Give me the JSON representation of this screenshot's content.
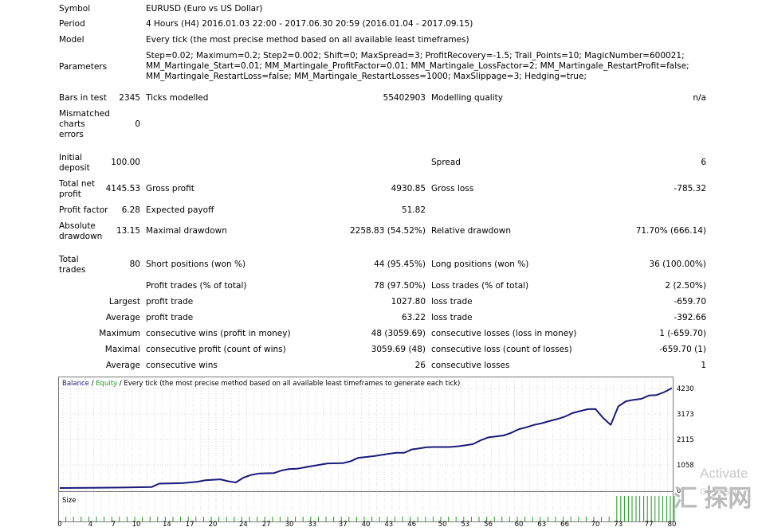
{
  "report": {
    "symbol": {
      "label": "Symbol",
      "value": "EURUSD (Euro vs US Dollar)"
    },
    "period": {
      "label": "Period",
      "value": "4 Hours (H4) 2016.01.03 22:00 - 2017.06.30 20:59 (2016.01.04 - 2017.09.15)"
    },
    "model": {
      "label": "Model",
      "value": "Every tick (the most precise method based on all available least timeframes)"
    },
    "parameters": {
      "label": "Parameters",
      "lines": [
        "Step=0.02; Maximum=0.2; Step2=0.002; Shift=0; MaxSpread=3; ProfitRecovery=-1.5; Trail_Points=10; MagicNumber=600021;",
        "MM_Martingale_Start=0.01; MM_Martingale_ProfitFactor=0.01; MM_Martingale_LossFactor=2; MM_Martingale_RestartProfit=false;",
        "MM_Martingale_RestartLoss=false; MM_Martingale_RestartLosses=1000; MaxSlippage=3; Hedging=true;"
      ]
    },
    "bars_in_test": {
      "label": "Bars in test",
      "value": "2345"
    },
    "ticks_modelled": {
      "label": "Ticks modelled",
      "value": "55402903"
    },
    "modelling_quality": {
      "label": "Modelling quality",
      "value": "n/a"
    },
    "mismatched": {
      "label": [
        "Mismatched",
        "charts",
        "errors"
      ],
      "value": "0"
    },
    "initial_deposit": {
      "label": [
        "Initial",
        "deposit"
      ],
      "value": "100.00"
    },
    "spread": {
      "label": "Spread",
      "value": "6"
    },
    "total_net_profit": {
      "label": [
        "Total net",
        "profit"
      ],
      "value": "4145.53"
    },
    "gross_profit": {
      "label": "Gross profit",
      "value": "4930.85"
    },
    "gross_loss": {
      "label": "Gross loss",
      "value": "-785.32"
    },
    "profit_factor": {
      "label": "Profit factor",
      "value": "6.28"
    },
    "expected_payoff": {
      "label": "Expected payoff",
      "value": "51.82"
    },
    "absolute_drawdown": {
      "label": [
        "Absolute",
        "drawdown"
      ],
      "value": "13.15"
    },
    "maximal_drawdown": {
      "label": "Maximal drawdown",
      "value": "2258.83 (54.52%)"
    },
    "relative_drawdown": {
      "label": "Relative drawdown",
      "value": "71.70% (666.14)"
    },
    "total_trades": {
      "label": [
        "Total",
        "trades"
      ],
      "value": "80"
    },
    "short_positions": {
      "label": "Short positions (won %)",
      "value": "44 (95.45%)"
    },
    "long_positions": {
      "label": "Long positions (won %)",
      "value": "36 (100.00%)"
    },
    "profit_trades": {
      "label": "Profit trades (% of total)",
      "value": "78 (97.50%)"
    },
    "loss_trades": {
      "label": "Loss trades (% of total)",
      "value": "2 (2.50%)"
    },
    "largest": {
      "label": "Largest",
      "profit_label": "profit trade",
      "profit_value": "1027.80",
      "loss_label": "loss trade",
      "loss_value": "-659.70"
    },
    "average": {
      "label": "Average",
      "profit_label": "profit trade",
      "profit_value": "63.22",
      "loss_label": "loss trade",
      "loss_value": "-392.66"
    },
    "maximum": {
      "label": "Maximum",
      "wins_label": "consecutive wins (profit in money)",
      "wins_value": "48 (3059.69)",
      "losses_label": "consecutive losses (loss in money)",
      "losses_value": "1 (-659.70)"
    },
    "maximal": {
      "label": "Maximal",
      "profit_label": "consecutive profit (count of wins)",
      "profit_value": "3059.69 (48)",
      "loss_label": "consecutive loss (count of losses)",
      "loss_value": "-659.70 (1)"
    },
    "average_consec": {
      "label": "Average",
      "wins_label": "consecutive wins",
      "wins_value": "26",
      "losses_label": "consecutive losses",
      "losses_value": "1"
    }
  },
  "chart_data": {
    "type": "line",
    "legend": {
      "balance": "Balance",
      "sep": " / ",
      "equity": "Equity",
      "rest": " / Every tick (the most precise method based on all available least timeframes to generate each tick)"
    },
    "colors": {
      "balance": "#1a1a7a",
      "equity": "#1f9a1f",
      "size": "#1f9a1f",
      "grid": "#d9d9d9"
    },
    "ylim": [
      0,
      4230
    ],
    "y_ticks": [
      "4230",
      "3173",
      "2115",
      "1058",
      "0"
    ],
    "x_ticks": [
      "0",
      "4",
      "7",
      "10",
      "14",
      "17",
      "20",
      "24",
      "27",
      "30",
      "33",
      "37",
      "40",
      "43",
      "46",
      "50",
      "53",
      "56",
      "60",
      "63",
      "66",
      "70",
      "73",
      "77",
      "80"
    ],
    "x_range": [
      0,
      80
    ],
    "balance": [
      [
        0,
        100
      ],
      [
        4,
        110
      ],
      [
        8,
        120
      ],
      [
        12,
        140
      ],
      [
        13,
        280
      ],
      [
        16,
        300
      ],
      [
        18,
        360
      ],
      [
        19,
        420
      ],
      [
        21,
        460
      ],
      [
        22,
        380
      ],
      [
        23,
        330
      ],
      [
        24,
        530
      ],
      [
        25,
        640
      ],
      [
        26,
        700
      ],
      [
        28,
        720
      ],
      [
        29,
        830
      ],
      [
        30,
        890
      ],
      [
        31,
        900
      ],
      [
        33,
        1010
      ],
      [
        35,
        1120
      ],
      [
        37,
        1130
      ],
      [
        38,
        1210
      ],
      [
        39,
        1350
      ],
      [
        41,
        1420
      ],
      [
        43,
        1520
      ],
      [
        44,
        1560
      ],
      [
        45,
        1560
      ],
      [
        46,
        1700
      ],
      [
        48,
        1790
      ],
      [
        49,
        1800
      ],
      [
        51,
        1800
      ],
      [
        52,
        1830
      ],
      [
        53,
        1870
      ],
      [
        54,
        1920
      ],
      [
        55,
        2080
      ],
      [
        56,
        2200
      ],
      [
        57,
        2240
      ],
      [
        58,
        2280
      ],
      [
        59,
        2390
      ],
      [
        60,
        2540
      ],
      [
        61,
        2620
      ],
      [
        62,
        2720
      ],
      [
        63,
        2790
      ],
      [
        64,
        2880
      ],
      [
        65,
        2960
      ],
      [
        66,
        3060
      ],
      [
        67,
        3210
      ],
      [
        68,
        3290
      ],
      [
        69,
        3370
      ],
      [
        70,
        3380
      ],
      [
        71,
        3010
      ],
      [
        72,
        2720
      ],
      [
        73,
        3490
      ],
      [
        74,
        3700
      ],
      [
        75,
        3760
      ],
      [
        76,
        3800
      ],
      [
        77,
        3940
      ],
      [
        78,
        3960
      ],
      [
        79,
        4080
      ],
      [
        80,
        4245
      ]
    ],
    "size_label": "Size",
    "size_bars_from": 73,
    "size_bars_to": 80
  },
  "watermark": {
    "activate": "Activate",
    "go_to": "Go to Setti",
    "logo": "汇 探网"
  }
}
